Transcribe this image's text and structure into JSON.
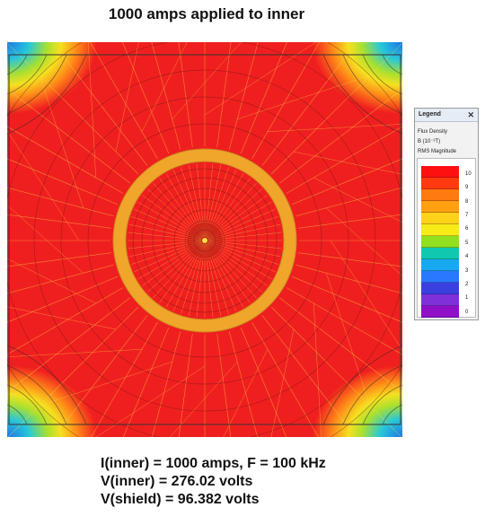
{
  "title": "1000 amps applied to inner",
  "legend": {
    "header": "Legend",
    "close_icon": "close-icon",
    "line1": "Flux Density",
    "line2": "B (10⁻³T)",
    "line3": "RMS Magnitude",
    "ticks": [
      "10",
      "9",
      "8",
      "7",
      "6",
      "5",
      "4",
      "3",
      "2",
      "1",
      "0"
    ],
    "colors": [
      "#ff1010",
      "#ff3a10",
      "#ff7a10",
      "#ffa010",
      "#ffd21a",
      "#f7ec18",
      "#90e020",
      "#10c8b0",
      "#18a8f0",
      "#2a78ff",
      "#3a40e0",
      "#8030d8",
      "#9010c8"
    ]
  },
  "info": {
    "line1": "I(inner) = 1000 amps, F = 100 kHz",
    "line2": "V(inner) = 276.02 volts",
    "line3": "V(shield) = 96.382 volts"
  },
  "colors": {
    "field": "#f01f1f",
    "shield": "#f0a62a",
    "mesh": "#f8d848",
    "corner_hot": "#ff8a18",
    "corner_warm": "#f5e020",
    "corner_cool": "#28c8d8",
    "corner_cold": "#1a74e8"
  }
}
